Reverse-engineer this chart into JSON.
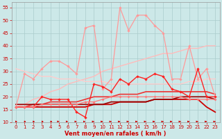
{
  "bg_color": "#cce8e8",
  "grid_color": "#aacccc",
  "xlabel": "Vent moyen/en rafales ( km/h )",
  "xlabel_color": "#cc0000",
  "tick_color": "#cc0000",
  "xlim": [
    -0.5,
    23.5
  ],
  "ylim": [
    10,
    57
  ],
  "yticks": [
    10,
    15,
    20,
    25,
    30,
    35,
    40,
    45,
    50,
    55
  ],
  "xticks": [
    0,
    1,
    2,
    3,
    4,
    5,
    6,
    7,
    8,
    9,
    10,
    11,
    12,
    13,
    14,
    15,
    16,
    17,
    18,
    19,
    20,
    21,
    22,
    23
  ],
  "series": [
    {
      "color": "#ff9999",
      "lw": 0.9,
      "marker": "D",
      "ms": 2.2,
      "data": [
        16,
        29,
        27,
        31,
        34,
        34,
        32,
        29,
        47,
        48,
        23,
        27,
        55,
        46,
        52,
        52,
        48,
        45,
        27,
        27,
        40,
        27,
        31,
        20
      ]
    },
    {
      "color": "#ffbbbb",
      "lw": 1.0,
      "marker": null,
      "ms": 0,
      "data": [
        16,
        17,
        19,
        20,
        22,
        23,
        25,
        26,
        27,
        28,
        30,
        31,
        32,
        33,
        34,
        35,
        36,
        37,
        37,
        38,
        39,
        39,
        40,
        40
      ]
    },
    {
      "color": "#ffcccc",
      "lw": 1.0,
      "marker": null,
      "ms": 0,
      "data": [
        31,
        30,
        29,
        28,
        28,
        27,
        27,
        27,
        26,
        26,
        26,
        25,
        25,
        25,
        25,
        25,
        25,
        25,
        25,
        25,
        26,
        26,
        27,
        27
      ]
    },
    {
      "color": "#ff2222",
      "lw": 1.0,
      "marker": "D",
      "ms": 2.2,
      "data": [
        16,
        16,
        16,
        20,
        19,
        19,
        19,
        14,
        12,
        25,
        24,
        22,
        27,
        25,
        28,
        27,
        29,
        28,
        23,
        22,
        20,
        31,
        20,
        20
      ]
    },
    {
      "color": "#ee3333",
      "lw": 1.2,
      "marker": null,
      "ms": 0,
      "data": [
        16,
        16,
        17,
        17,
        18,
        18,
        18,
        18,
        19,
        20,
        20,
        20,
        21,
        21,
        21,
        22,
        22,
        22,
        22,
        22,
        22,
        22,
        22,
        21
      ]
    },
    {
      "color": "#cc0000",
      "lw": 1.3,
      "marker": null,
      "ms": 0,
      "data": [
        16,
        16,
        16,
        16,
        16,
        16,
        16,
        16,
        16,
        17,
        17,
        17,
        18,
        18,
        18,
        18,
        19,
        19,
        19,
        19,
        19,
        19,
        16,
        14
      ]
    },
    {
      "color": "#990000",
      "lw": 1.2,
      "marker": null,
      "ms": 0,
      "data": [
        17,
        17,
        17,
        17,
        17,
        17,
        17,
        17,
        17,
        17,
        17,
        18,
        18,
        18,
        18,
        18,
        19,
        19,
        19,
        20,
        20,
        20,
        20,
        19
      ]
    },
    {
      "color": "#ff7777",
      "lw": 0.9,
      "marker": "D",
      "ms": 2.0,
      "data": [
        16,
        16,
        16,
        17,
        17,
        17,
        17,
        17,
        18,
        18,
        19,
        20,
        20,
        20,
        20,
        20,
        20,
        20,
        20,
        20,
        19,
        19,
        19,
        19
      ]
    }
  ],
  "arrow_color": "#cc0000",
  "arrow_angles": [
    45,
    50,
    55,
    60,
    65,
    70,
    75,
    80,
    85,
    90,
    90,
    90,
    90,
    90,
    90,
    90,
    90,
    90,
    90,
    90,
    90,
    90,
    90,
    90
  ]
}
